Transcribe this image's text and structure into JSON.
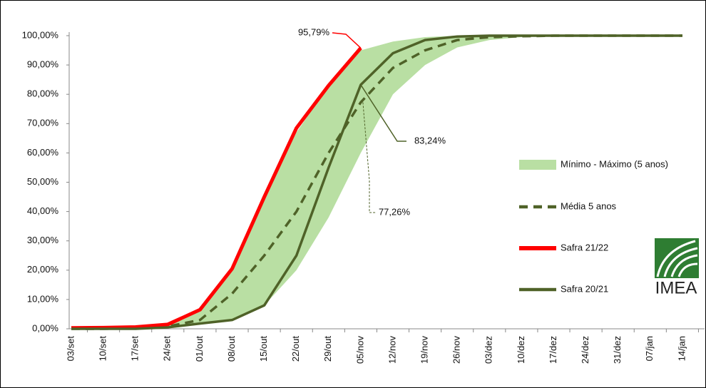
{
  "chart_data": {
    "type": "line",
    "categories": [
      "03/set",
      "10/set",
      "17/set",
      "24/set",
      "01/out",
      "08/out",
      "15/out",
      "22/out",
      "29/out",
      "05/nov",
      "12/nov",
      "19/nov",
      "26/nov",
      "03/dez",
      "10/dez",
      "17/dez",
      "24/dez",
      "31/dez",
      "07/jan",
      "14/jan"
    ],
    "band": {
      "name": "Mínimo - Máximo (5 anos)",
      "color": "#b9dfa3",
      "min": [
        0,
        0,
        0,
        0.3,
        1.5,
        3,
        8,
        20,
        38,
        60,
        80,
        90,
        96,
        98.5,
        99.5,
        99.8,
        100,
        100,
        100,
        100
      ],
      "max": [
        0,
        0.2,
        0.5,
        1.5,
        6,
        20,
        45,
        67,
        83,
        95,
        98,
        99.5,
        100,
        100,
        100,
        100,
        100,
        100,
        100,
        100
      ]
    },
    "series": [
      {
        "name": "Média 5 anos",
        "color": "#4f6228",
        "dashed": true,
        "values": [
          0,
          0,
          0.2,
          0.8,
          3,
          12,
          25,
          40,
          60,
          77.26,
          89,
          95,
          98.5,
          99.5,
          99.8,
          100,
          100,
          100,
          100,
          100
        ],
        "value_labels": [
          null,
          null,
          null,
          null,
          null,
          null,
          null,
          null,
          null,
          "77,26%",
          null,
          null,
          null,
          null,
          null,
          null,
          null,
          null,
          null,
          null
        ]
      },
      {
        "name": "Safra 21/22",
        "color": "#ff0000",
        "dashed": false,
        "values": [
          0.3,
          0.4,
          0.6,
          1.5,
          6.5,
          20.5,
          45,
          68.5,
          83,
          95.79,
          null,
          null,
          null,
          null,
          null,
          null,
          null,
          null,
          null,
          null
        ],
        "value_labels": [
          null,
          null,
          null,
          null,
          null,
          null,
          null,
          null,
          null,
          "95,79%",
          null,
          null,
          null,
          null,
          null,
          null,
          null,
          null,
          null,
          null
        ]
      },
      {
        "name": "Safra 20/21",
        "color": "#4f6228",
        "dashed": false,
        "values": [
          0,
          0,
          0,
          0.5,
          1.8,
          3,
          8,
          25,
          55,
          83.24,
          94,
          98.5,
          99.7,
          100,
          100,
          100,
          100,
          100,
          100,
          100
        ],
        "value_labels": [
          null,
          null,
          null,
          null,
          null,
          null,
          null,
          null,
          null,
          "83,24%",
          null,
          null,
          null,
          null,
          null,
          null,
          null,
          null,
          null,
          null
        ]
      }
    ],
    "ylim": [
      0,
      100
    ],
    "yticks": [
      {
        "value": 0,
        "label": "0,00%"
      },
      {
        "value": 10,
        "label": "10,00%"
      },
      {
        "value": 20,
        "label": "20,00%"
      },
      {
        "value": 30,
        "label": "30,00%"
      },
      {
        "value": 40,
        "label": "40,00%"
      },
      {
        "value": 50,
        "label": "50,00%"
      },
      {
        "value": 60,
        "label": "60,00%"
      },
      {
        "value": 70,
        "label": "70,00%"
      },
      {
        "value": 80,
        "label": "80,00%"
      },
      {
        "value": 90,
        "label": "90,00%"
      },
      {
        "value": 100,
        "label": "100,00%"
      }
    ],
    "logo": "IMEA"
  }
}
